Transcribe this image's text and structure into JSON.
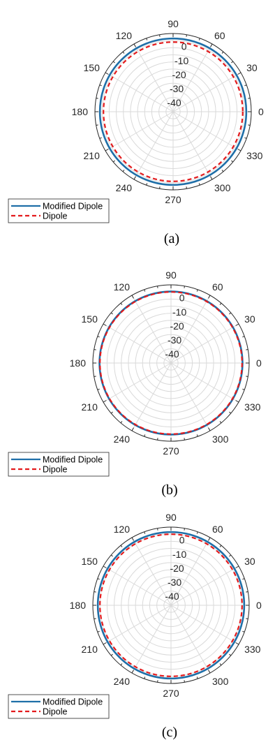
{
  "colors": {
    "modified": "#1f6fa8",
    "dipole": "#e31a1c",
    "grid": "#d9d9d9",
    "axis": "#262626"
  },
  "chart_data": [
    {
      "type": "polar",
      "caption": "(a)",
      "theta_ticks": [
        "0",
        "30",
        "60",
        "90",
        "120",
        "150",
        "180",
        "210",
        "240",
        "270",
        "300",
        "330"
      ],
      "r_ticks": [
        "0",
        "-10",
        "-20",
        "-30",
        "-40"
      ],
      "rlim": [
        -50,
        5
      ],
      "grid": true,
      "legend": "bottom-left",
      "series": [
        {
          "name": "Modified Dipole",
          "style": "solid",
          "value_db": 1.5
        },
        {
          "name": "Dipole",
          "style": "dashed",
          "value_db": -1.0
        }
      ]
    },
    {
      "type": "polar",
      "caption": "(b)",
      "theta_ticks": [
        "0",
        "30",
        "60",
        "90",
        "120",
        "150",
        "180",
        "210",
        "240",
        "270",
        "300",
        "330"
      ],
      "r_ticks": [
        "0",
        "-10",
        "-20",
        "-30",
        "-40"
      ],
      "rlim": [
        -50,
        5
      ],
      "grid": true,
      "legend": "bottom-left",
      "series": [
        {
          "name": "Modified Dipole",
          "style": "solid",
          "value_db": 0.3
        },
        {
          "name": "Dipole",
          "style": "dashed",
          "value_db": 0.0
        }
      ]
    },
    {
      "type": "polar",
      "caption": "(c)",
      "theta_ticks": [
        "0",
        "30",
        "60",
        "90",
        "120",
        "150",
        "180",
        "210",
        "240",
        "270",
        "300",
        "330"
      ],
      "r_ticks": [
        "0",
        "-10",
        "-20",
        "-30",
        "-40"
      ],
      "rlim": [
        -50,
        5
      ],
      "grid": true,
      "legend": "bottom-left",
      "series": [
        {
          "name": "Modified Dipole",
          "style": "solid",
          "value_db": 1.5
        },
        {
          "name": "Dipole",
          "style": "dashed",
          "value_db": 0.0
        }
      ]
    }
  ]
}
